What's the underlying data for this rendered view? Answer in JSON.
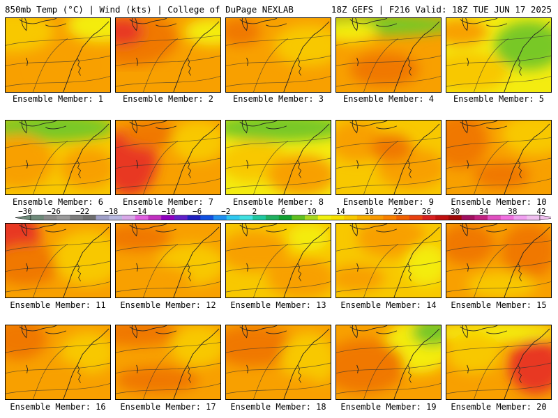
{
  "header": {
    "left": "850mb Temp (°C) | Wind (kts) | College of DuPage NEXLAB",
    "right": "18Z GEFS | F216 Valid: 18Z TUE JUN 17 2025"
  },
  "members": [
    {
      "label": "Ensemble Member: 1"
    },
    {
      "label": "Ensemble Member: 2"
    },
    {
      "label": "Ensemble Member: 3"
    },
    {
      "label": "Ensemble Member: 4"
    },
    {
      "label": "Ensemble Member: 5"
    },
    {
      "label": "Ensemble Member: 6"
    },
    {
      "label": "Ensemble Member: 7"
    },
    {
      "label": "Ensemble Member: 8"
    },
    {
      "label": "Ensemble Member: 9"
    },
    {
      "label": "Ensemble Member: 10"
    },
    {
      "label": "Ensemble Member: 11"
    },
    {
      "label": "Ensemble Member: 12"
    },
    {
      "label": "Ensemble Member: 13"
    },
    {
      "label": "Ensemble Member: 14"
    },
    {
      "label": "Ensemble Member: 15"
    },
    {
      "label": "Ensemble Member: 16"
    },
    {
      "label": "Ensemble Member: 17"
    },
    {
      "label": "Ensemble Member: 18"
    },
    {
      "label": "Ensemble Member: 19"
    },
    {
      "label": "Ensemble Member: 20"
    }
  ],
  "colorbar": {
    "labels": [
      "−30",
      "−26",
      "−22",
      "−18",
      "−14",
      "−10",
      "−6",
      "−2",
      "2",
      "6",
      "10",
      "14",
      "18",
      "22",
      "26",
      "30",
      "34",
      "38",
      "42"
    ],
    "colors": [
      "#6e8a7a",
      "#8a8a8a",
      "#9a9a9a",
      "#7e7e7e",
      "#6e6e6e",
      "#a0a0c8",
      "#b8b8e0",
      "#d8a8e8",
      "#e060e0",
      "#c030c0",
      "#9000c0",
      "#6020c8",
      "#2020c0",
      "#1050e0",
      "#2090f0",
      "#30c8f0",
      "#40e0e0",
      "#20c8a0",
      "#20b060",
      "#10a030",
      "#60c020",
      "#a8d820",
      "#f0f010",
      "#f8e000",
      "#f8c800",
      "#f8b000",
      "#f89800",
      "#f88000",
      "#f06000",
      "#e84010",
      "#d82020",
      "#c01010",
      "#a00808",
      "#a01060",
      "#c02080",
      "#e050c0",
      "#f070e0",
      "#f0a0f0",
      "#f0c0f0"
    ]
  },
  "palette": {
    "yellow": "#f4ec10",
    "light_orange": "#f8c800",
    "orange": "#f8a000",
    "dark_orange": "#f07800",
    "red": "#e83820",
    "green": "#78c828"
  }
}
